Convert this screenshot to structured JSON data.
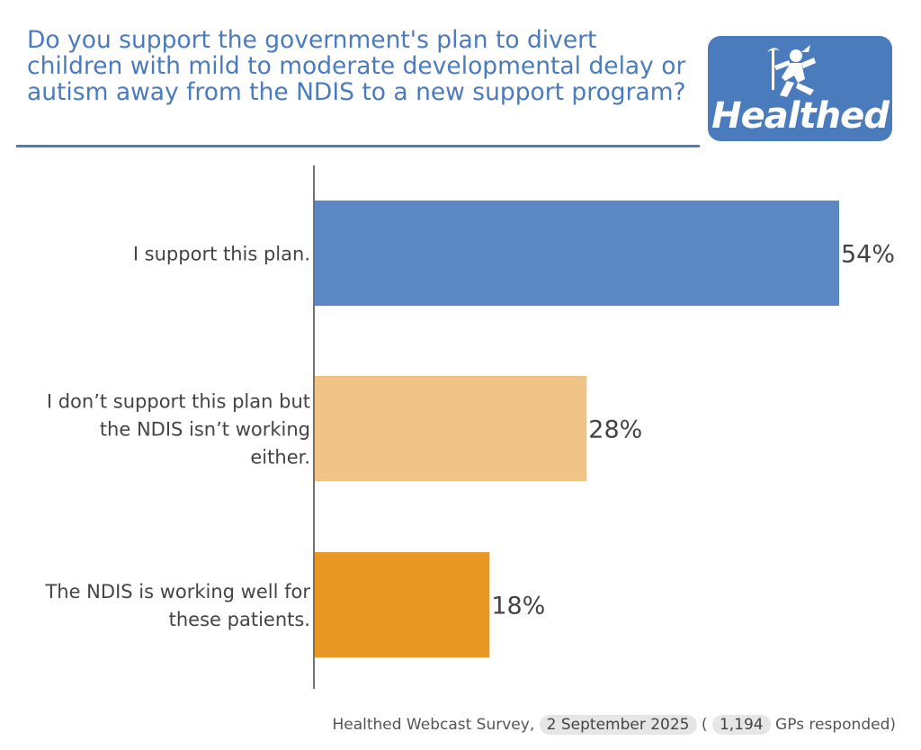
{
  "header": {
    "title": "Do you support the government's plan to divert children with mild to moderate developmental delay or autism away from the NDIS to a new support program?",
    "logo_text": "Healthed"
  },
  "colors": {
    "accent": "#4a7bbd",
    "bar_1": "#5b87c5",
    "bar_2": "#f0c486",
    "bar_3": "#e89724"
  },
  "chart_data": {
    "type": "bar",
    "orientation": "horizontal",
    "categories": [
      "I support this plan.",
      "I don’t support this plan but the NDIS isn’t working either.",
      "The NDIS is working well for these patients."
    ],
    "category_lines": [
      [
        "I support this plan."
      ],
      [
        "I don’t support this plan but",
        "the NDIS isn’t working",
        "either."
      ],
      [
        "The NDIS is working well for",
        "these patients."
      ]
    ],
    "values": [
      54,
      28,
      18
    ],
    "data_labels": [
      "54%",
      "28%",
      "18%"
    ],
    "xlim": [
      0,
      54
    ],
    "grid": false
  },
  "footer": {
    "source": "Healthed Webcast Survey,",
    "date": "2 September 2025",
    "paren_open": "(",
    "count": "1,194",
    "suffix": "GPs responded)"
  }
}
